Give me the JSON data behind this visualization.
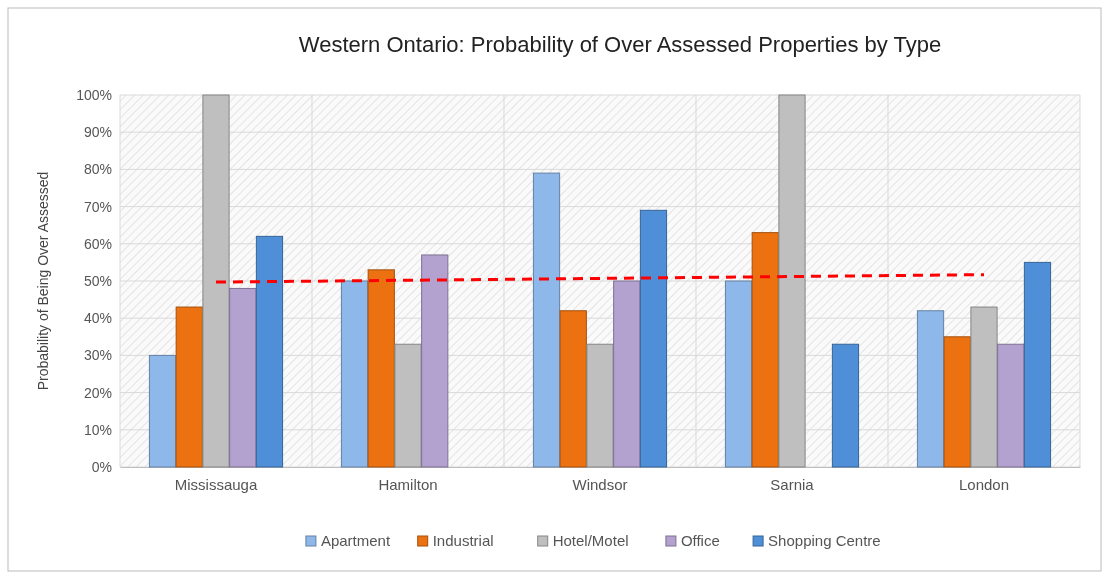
{
  "chart_data": {
    "type": "bar",
    "title": "Western Ontario: Probability of Over Assessed Properties by Type",
    "ylabel": "Probability of Being Over Assessed",
    "categories": [
      "Mississauga",
      "Hamilton",
      "Windsor",
      "Sarnia",
      "London"
    ],
    "series": [
      {
        "name": "Apartment",
        "color": "#8fb8ea",
        "values": [
          30,
          50,
          79,
          50,
          42
        ]
      },
      {
        "name": "Industrial",
        "color": "#ec7211",
        "values": [
          43,
          53,
          42,
          63,
          35
        ]
      },
      {
        "name": "Hotel/Motel",
        "color": "#bfbfbf",
        "values": [
          100,
          33,
          33,
          100,
          43
        ]
      },
      {
        "name": "Office",
        "color": "#b3a2cf",
        "values": [
          48,
          57,
          50,
          null,
          33
        ]
      },
      {
        "name": "Shopping Centre",
        "color": "#4f8fd8",
        "values": [
          62,
          null,
          69,
          33,
          55
        ]
      },
      {
        "type": "line",
        "color": "#ff0000",
        "line_style": "dashed",
        "values": [
          49.7,
          50.2,
          50.7,
          51.2,
          51.7
        ]
      }
    ],
    "ylim": [
      0,
      100
    ],
    "yticks": [
      {
        "value": 0,
        "label": "0%"
      },
      {
        "value": 10,
        "label": "10%"
      },
      {
        "value": 20,
        "label": "20%"
      },
      {
        "value": 30,
        "label": "30%"
      },
      {
        "value": 40,
        "label": "40%"
      },
      {
        "value": 50,
        "label": "50%"
      },
      {
        "value": 60,
        "label": "60%"
      },
      {
        "value": 70,
        "label": "70%"
      },
      {
        "value": 80,
        "label": "80%"
      },
      {
        "value": 90,
        "label": "90%"
      },
      {
        "value": 100,
        "label": "100%"
      }
    ],
    "grid": true,
    "legend": "bottom"
  }
}
